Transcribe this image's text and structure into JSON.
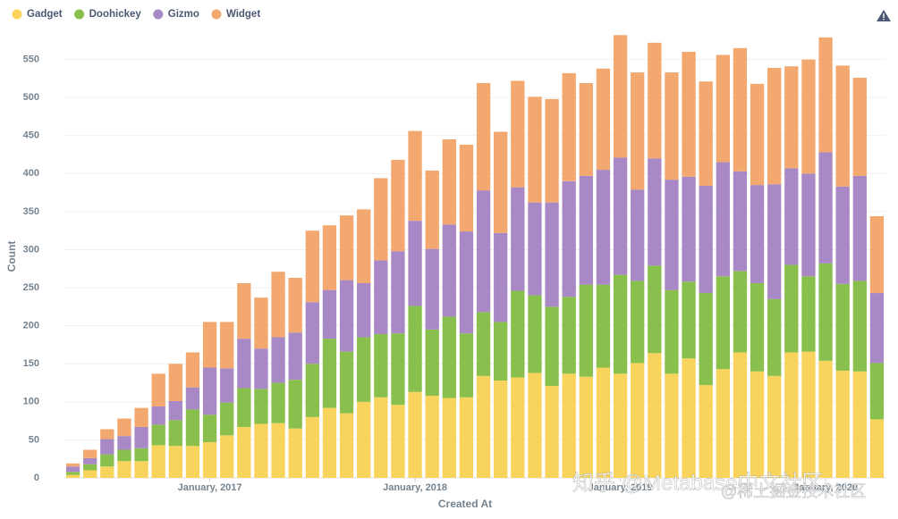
{
  "chart_data": {
    "type": "stacked_bar",
    "xlabel": "Created At",
    "ylabel": "Count",
    "categories": [
      null,
      null,
      null,
      null,
      null,
      null,
      null,
      null,
      "January, 2017",
      null,
      null,
      null,
      null,
      null,
      null,
      null,
      null,
      null,
      null,
      null,
      "January, 2018",
      null,
      null,
      null,
      null,
      null,
      null,
      null,
      null,
      null,
      null,
      null,
      "January, 2019",
      null,
      null,
      null,
      null,
      null,
      null,
      null,
      null,
      null,
      null,
      null,
      "January, 2020",
      null,
      null,
      null
    ],
    "series": [
      {
        "name": "Gadget",
        "color": "#f9d45c",
        "values": [
          4,
          10,
          15,
          22,
          22,
          43,
          42,
          42,
          47,
          56,
          67,
          71,
          72,
          65,
          80,
          92,
          85,
          100,
          106,
          96,
          113,
          108,
          105,
          106,
          134,
          128,
          132,
          138,
          121,
          137,
          133,
          145,
          137,
          151,
          164,
          137,
          157,
          122,
          143,
          165,
          140,
          134,
          165,
          166,
          154,
          141,
          140,
          77
        ]
      },
      {
        "name": "Doohickey",
        "color": "#88bf4d",
        "values": [
          4,
          8,
          16,
          15,
          17,
          27,
          34,
          48,
          36,
          43,
          51,
          46,
          53,
          64,
          70,
          91,
          81,
          85,
          83,
          94,
          113,
          87,
          107,
          84,
          84,
          77,
          114,
          102,
          104,
          101,
          121,
          109,
          130,
          108,
          115,
          110,
          101,
          121,
          122,
          107,
          116,
          101,
          115,
          99,
          128,
          114,
          119,
          74
        ]
      },
      {
        "name": "Gizmo",
        "color": "#a989c5",
        "values": [
          7,
          8,
          20,
          18,
          28,
          24,
          25,
          29,
          62,
          45,
          65,
          53,
          60,
          62,
          81,
          64,
          94,
          71,
          97,
          108,
          112,
          106,
          121,
          134,
          160,
          117,
          136,
          122,
          137,
          152,
          143,
          151,
          154,
          120,
          141,
          145,
          138,
          141,
          150,
          131,
          129,
          151,
          127,
          135,
          146,
          128,
          138,
          92
        ]
      },
      {
        "name": "Widget",
        "color": "#f2a86f",
        "values": [
          4,
          11,
          13,
          23,
          25,
          43,
          49,
          46,
          60,
          61,
          73,
          67,
          86,
          72,
          94,
          85,
          85,
          97,
          108,
          120,
          118,
          103,
          112,
          114,
          141,
          133,
          140,
          139,
          136,
          142,
          122,
          133,
          161,
          154,
          152,
          141,
          164,
          137,
          141,
          162,
          133,
          153,
          134,
          150,
          151,
          159,
          129,
          101
        ]
      }
    ],
    "ylim": [
      0,
      600
    ],
    "yticks": [
      0,
      50,
      100,
      150,
      200,
      250,
      300,
      350,
      400,
      450,
      500,
      550
    ],
    "grid": true,
    "legend": "top-left",
    "annotations": [
      "知乎 @Metabase中文社区",
      "@稀土掘金技术社区"
    ]
  }
}
